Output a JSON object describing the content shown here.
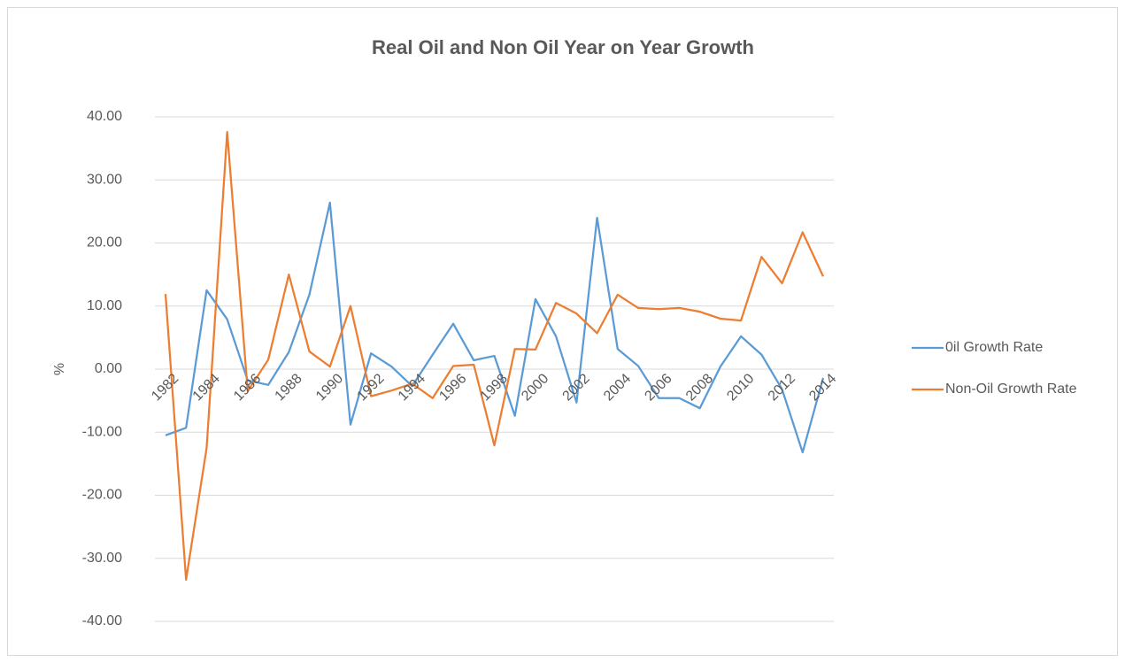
{
  "chart_data": {
    "type": "line",
    "title": "Real Oil and Non Oil Year on Year Growth",
    "y_label": "%",
    "categories": [
      "1982",
      null,
      "1984",
      null,
      "1986",
      null,
      "1988",
      null,
      "1990",
      null,
      "1992",
      null,
      "1994",
      null,
      "1996",
      null,
      "1998",
      null,
      "2000",
      null,
      "2002",
      null,
      "2004",
      null,
      "2006",
      null,
      "2008",
      null,
      "2010",
      null,
      "2012",
      null,
      "2014"
    ],
    "series": [
      {
        "name": "0il Growth Rate",
        "color": "#5b9bd5",
        "values": [
          -10.5,
          -9.3,
          12.5,
          7.9,
          -1.8,
          -2.5,
          2.7,
          11.8,
          26.4,
          -8.8,
          2.5,
          0.4,
          -2.7,
          2.3,
          7.2,
          1.4,
          2.1,
          -7.4,
          11.1,
          5.2,
          -5.3,
          24.0,
          3.2,
          0.5,
          -4.6,
          -4.6,
          -6.2,
          0.4,
          5.2,
          2.3,
          -3.2,
          -13.2,
          -1.4
        ]
      },
      {
        "name": "Non-Oil Growth Rate",
        "color": "#ed7d31",
        "values": [
          11.9,
          -33.4,
          -12.5,
          37.6,
          -3.5,
          1.5,
          15.0,
          2.8,
          0.4,
          10.0,
          -4.3,
          -3.4,
          -2.3,
          -4.6,
          0.5,
          0.7,
          -12.1,
          3.2,
          3.1,
          10.5,
          8.8,
          5.7,
          11.8,
          9.7,
          9.5,
          9.7,
          9.1,
          8.0,
          7.7,
          17.8,
          13.6,
          21.7,
          14.7
        ]
      }
    ],
    "ylim": [
      -40,
      40
    ],
    "yticks": [
      {
        "value": -40,
        "label": "-40.00"
      },
      {
        "value": -30,
        "label": "-30.00"
      },
      {
        "value": -20,
        "label": "-20.00"
      },
      {
        "value": -10,
        "label": "-10.00"
      },
      {
        "value": 0,
        "label": "0.00"
      },
      {
        "value": 10,
        "label": "10.00"
      },
      {
        "value": 20,
        "label": "20.00"
      },
      {
        "value": 30,
        "label": "30.00"
      },
      {
        "value": 40,
        "label": "40.00"
      }
    ],
    "grid": true,
    "legend": "right"
  }
}
